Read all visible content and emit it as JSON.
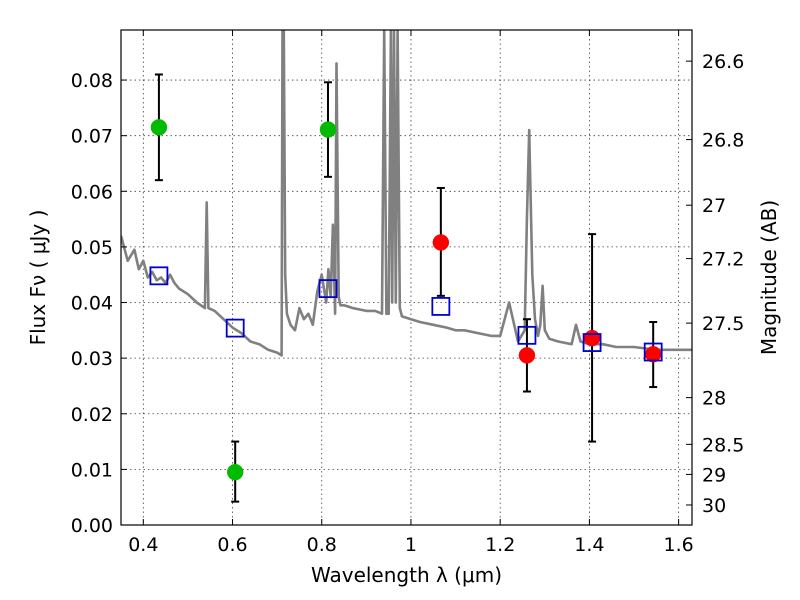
{
  "chart_data": {
    "type": "scatter",
    "title": "",
    "xlabel": "Wavelength  λ (μm)",
    "ylabel": "Flux  Fν  ( μJy )",
    "y2label": "Magnitude (AB)",
    "xlim": [
      0.35,
      1.63
    ],
    "ylim": [
      0.0,
      0.089
    ],
    "grid": true,
    "x_ticks": [
      0.4,
      0.6,
      0.8,
      1.0,
      1.2,
      1.4,
      1.6
    ],
    "x_tick_labels": [
      "0.4",
      "0.6",
      "0.8",
      "1",
      "1.2",
      "1.4",
      "1.6"
    ],
    "y_ticks": [
      0.0,
      0.01,
      0.02,
      0.03,
      0.04,
      0.05,
      0.06,
      0.07,
      0.08
    ],
    "y_tick_labels": [
      "0.00",
      "0.01",
      "0.02",
      "0.03",
      "0.04",
      "0.05",
      "0.06",
      "0.07",
      "0.08"
    ],
    "y2_ticks": [
      {
        "label": "26.6",
        "flux": 0.0834
      },
      {
        "label": "26.8",
        "flux": 0.0693
      },
      {
        "label": "27",
        "flux": 0.0575
      },
      {
        "label": "27.2",
        "flux": 0.0479
      },
      {
        "label": "27.5",
        "flux": 0.0363
      },
      {
        "label": "28",
        "flux": 0.0229
      },
      {
        "label": "28.5",
        "flux": 0.0145
      },
      {
        "label": "29",
        "flux": 0.0091
      },
      {
        "label": "30",
        "flux": 0.0036
      }
    ],
    "series": [
      {
        "marker": "circle",
        "color": "#00bb00",
        "points": [
          {
            "x": 0.435,
            "y": 0.0715,
            "yerr": [
              0.062,
              0.081
            ]
          },
          {
            "x": 0.606,
            "y": 0.0095,
            "yerr": [
              0.0042,
              0.015
            ]
          },
          {
            "x": 0.814,
            "y": 0.0711,
            "yerr": [
              0.0626,
              0.0796
            ]
          }
        ]
      },
      {
        "marker": "circle",
        "color": "#ff0000",
        "points": [
          {
            "x": 1.067,
            "y": 0.0508,
            "yerr": [
              0.0412,
              0.0606
            ]
          },
          {
            "x": 1.26,
            "y": 0.0305,
            "yerr": [
              0.024,
              0.037
            ]
          },
          {
            "x": 1.406,
            "y": 0.0336,
            "yerr": [
              0.015,
              0.0523
            ]
          },
          {
            "x": 1.543,
            "y": 0.0307,
            "yerr": [
              0.0248,
              0.0365
            ]
          }
        ]
      },
      {
        "marker": "square",
        "color": "#0000cc",
        "points": [
          {
            "x": 0.435,
            "y": 0.0448
          },
          {
            "x": 0.606,
            "y": 0.0354
          },
          {
            "x": 0.814,
            "y": 0.0425
          },
          {
            "x": 1.067,
            "y": 0.0393
          },
          {
            "x": 1.26,
            "y": 0.0341
          },
          {
            "x": 1.406,
            "y": 0.0328
          },
          {
            "x": 1.543,
            "y": 0.0311
          }
        ]
      },
      {
        "type": "line",
        "color": "#808080",
        "x": [
          0.35,
          0.365,
          0.38,
          0.39,
          0.4,
          0.41,
          0.42,
          0.43,
          0.44,
          0.45,
          0.46,
          0.47,
          0.48,
          0.49,
          0.5,
          0.52,
          0.538,
          0.542,
          0.546,
          0.56,
          0.58,
          0.6,
          0.62,
          0.64,
          0.66,
          0.68,
          0.7,
          0.71,
          0.712,
          0.715,
          0.718,
          0.722,
          0.73,
          0.74,
          0.75,
          0.76,
          0.77,
          0.78,
          0.79,
          0.8,
          0.81,
          0.815,
          0.82,
          0.825,
          0.83,
          0.833,
          0.838,
          0.842,
          0.85,
          0.87,
          0.9,
          0.92,
          0.935,
          0.94,
          0.945,
          0.95,
          0.955,
          0.958,
          0.962,
          0.966,
          0.97,
          0.975,
          0.98,
          1.0,
          1.02,
          1.05,
          1.08,
          1.1,
          1.12,
          1.15,
          1.18,
          1.2,
          1.22,
          1.24,
          1.255,
          1.26,
          1.265,
          1.268,
          1.272,
          1.278,
          1.285,
          1.29,
          1.295,
          1.3,
          1.31,
          1.33,
          1.36,
          1.37,
          1.38,
          1.4,
          1.43,
          1.46,
          1.5,
          1.55,
          1.6,
          1.63
        ],
        "y": [
          0.052,
          0.0475,
          0.0495,
          0.046,
          0.0475,
          0.0445,
          0.0455,
          0.044,
          0.0445,
          0.0435,
          0.045,
          0.0435,
          0.0425,
          0.042,
          0.0415,
          0.04,
          0.039,
          0.058,
          0.039,
          0.0385,
          0.037,
          0.0355,
          0.0345,
          0.033,
          0.0325,
          0.0315,
          0.031,
          0.0305,
          0.089,
          0.089,
          0.045,
          0.038,
          0.036,
          0.035,
          0.039,
          0.037,
          0.038,
          0.036,
          0.042,
          0.045,
          0.04,
          0.046,
          0.041,
          0.054,
          0.038,
          0.083,
          0.041,
          0.0395,
          0.0395,
          0.039,
          0.0385,
          0.0385,
          0.038,
          0.089,
          0.038,
          0.038,
          0.089,
          0.04,
          0.089,
          0.04,
          0.089,
          0.039,
          0.0375,
          0.037,
          0.0365,
          0.036,
          0.0355,
          0.035,
          0.035,
          0.0345,
          0.034,
          0.034,
          0.04,
          0.033,
          0.035,
          0.055,
          0.071,
          0.06,
          0.045,
          0.037,
          0.034,
          0.036,
          0.043,
          0.035,
          0.0335,
          0.033,
          0.0325,
          0.036,
          0.033,
          0.0325,
          0.0325,
          0.032,
          0.032,
          0.0315,
          0.0315,
          0.0315
        ]
      }
    ]
  }
}
